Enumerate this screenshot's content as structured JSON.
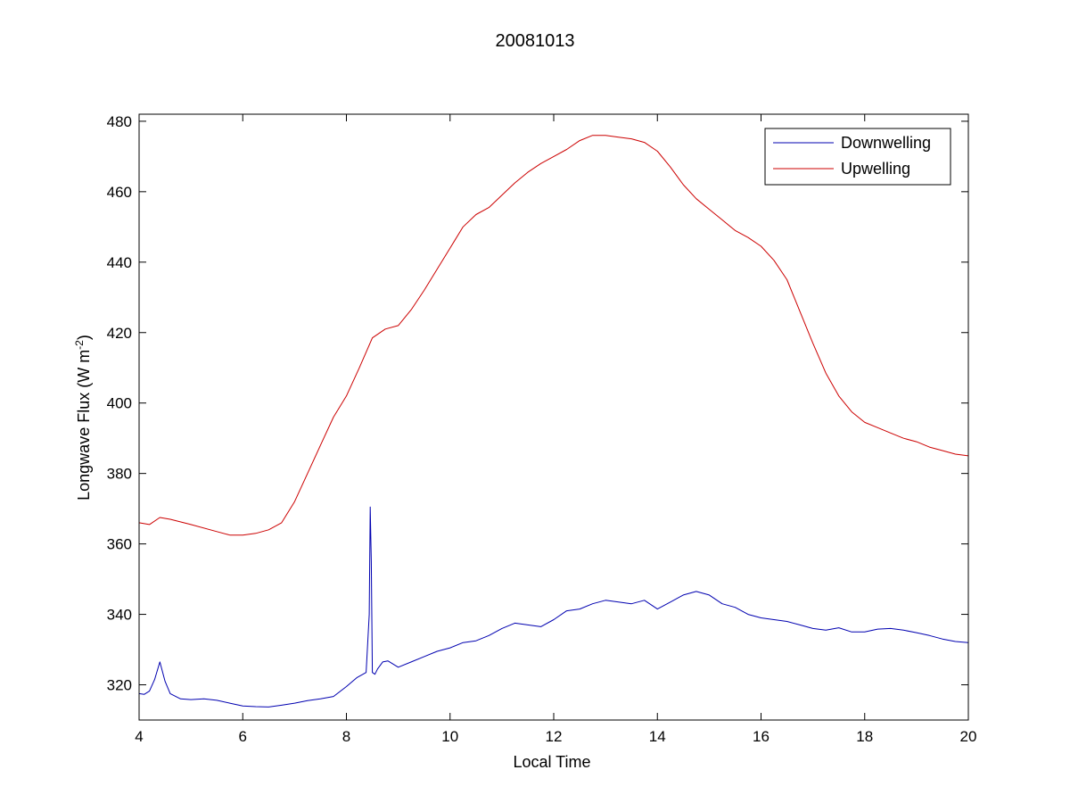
{
  "chart_data": {
    "type": "line",
    "title": "20081013",
    "xlabel": "Local Time",
    "ylabel_main": "Longwave Flux (W m",
    "ylabel_sup": "-2",
    "ylabel_close": ")",
    "xlim": [
      4,
      20
    ],
    "ylim": [
      310,
      482
    ],
    "xticks": [
      4,
      6,
      8,
      10,
      12,
      14,
      16,
      18,
      20
    ],
    "yticks": [
      320,
      340,
      360,
      380,
      400,
      420,
      440,
      460,
      480
    ],
    "grid": false,
    "legend_position": "top-right",
    "series": [
      {
        "name": "Downwelling",
        "color": "#0000b0",
        "x": [
          4.0,
          4.1,
          4.2,
          4.3,
          4.4,
          4.5,
          4.6,
          4.8,
          5.0,
          5.25,
          5.5,
          5.75,
          6.0,
          6.25,
          6.5,
          6.75,
          7.0,
          7.25,
          7.5,
          7.75,
          8.0,
          8.2,
          8.38,
          8.44,
          8.46,
          8.48,
          8.5,
          8.55,
          8.6,
          8.7,
          8.8,
          9.0,
          9.25,
          9.5,
          9.75,
          10.0,
          10.25,
          10.5,
          10.75,
          11.0,
          11.25,
          11.5,
          11.75,
          12.0,
          12.25,
          12.5,
          12.75,
          13.0,
          13.25,
          13.5,
          13.75,
          14.0,
          14.25,
          14.5,
          14.75,
          15.0,
          15.25,
          15.5,
          15.75,
          16.0,
          16.25,
          16.5,
          16.75,
          17.0,
          17.25,
          17.5,
          17.75,
          18.0,
          18.25,
          18.5,
          18.75,
          19.0,
          19.25,
          19.5,
          19.75,
          20.0
        ],
        "y": [
          317.5,
          317.3,
          318.2,
          321.5,
          326.5,
          321.0,
          317.5,
          316.0,
          315.8,
          316.0,
          315.6,
          314.8,
          314.0,
          313.8,
          313.7,
          314.2,
          314.8,
          315.5,
          316.0,
          316.7,
          319.5,
          322.0,
          323.5,
          340.0,
          370.5,
          355.0,
          323.5,
          323.0,
          324.5,
          326.5,
          326.8,
          325.0,
          326.5,
          328.0,
          329.5,
          330.5,
          332.0,
          332.5,
          334.0,
          336.0,
          337.5,
          337.0,
          336.5,
          338.5,
          341.0,
          341.5,
          343.0,
          344.0,
          343.5,
          343.0,
          344.0,
          341.5,
          343.5,
          345.5,
          346.5,
          345.5,
          343.0,
          342.0,
          340.0,
          339.0,
          338.5,
          338.0,
          337.0,
          336.0,
          335.5,
          336.2,
          335.0,
          335.0,
          335.8,
          336.0,
          335.5,
          334.8,
          334.0,
          333.0,
          332.3,
          332.0
        ]
      },
      {
        "name": "Upwelling",
        "color": "#cc0000",
        "x": [
          4.0,
          4.2,
          4.4,
          4.6,
          5.0,
          5.5,
          5.75,
          6.0,
          6.25,
          6.5,
          6.75,
          7.0,
          7.25,
          7.5,
          7.75,
          8.0,
          8.25,
          8.5,
          8.75,
          9.0,
          9.25,
          9.5,
          9.75,
          10.0,
          10.25,
          10.5,
          10.75,
          11.0,
          11.25,
          11.5,
          11.75,
          12.0,
          12.25,
          12.5,
          12.75,
          13.0,
          13.25,
          13.5,
          13.75,
          14.0,
          14.25,
          14.5,
          14.75,
          15.0,
          15.25,
          15.5,
          15.75,
          16.0,
          16.25,
          16.5,
          16.75,
          17.0,
          17.25,
          17.5,
          17.75,
          18.0,
          18.25,
          18.5,
          18.75,
          19.0,
          19.25,
          19.5,
          19.75,
          20.0
        ],
        "y": [
          366.0,
          365.5,
          367.5,
          367.0,
          365.5,
          363.5,
          362.5,
          362.5,
          363.0,
          364.0,
          366.0,
          372.0,
          380.0,
          388.0,
          396.0,
          402.0,
          410.0,
          418.5,
          421.0,
          422.0,
          426.5,
          432.0,
          438.0,
          444.0,
          450.0,
          453.5,
          455.5,
          459.0,
          462.5,
          465.5,
          468.0,
          470.0,
          472.0,
          474.5,
          476.0,
          476.0,
          475.5,
          475.0,
          474.0,
          471.5,
          467.0,
          462.0,
          458.0,
          455.0,
          452.0,
          449.0,
          447.0,
          444.5,
          440.5,
          435.0,
          426.0,
          417.0,
          408.5,
          402.0,
          397.5,
          394.5,
          393.0,
          391.5,
          390.0,
          389.0,
          387.5,
          386.5,
          385.5,
          385.0
        ]
      }
    ]
  }
}
